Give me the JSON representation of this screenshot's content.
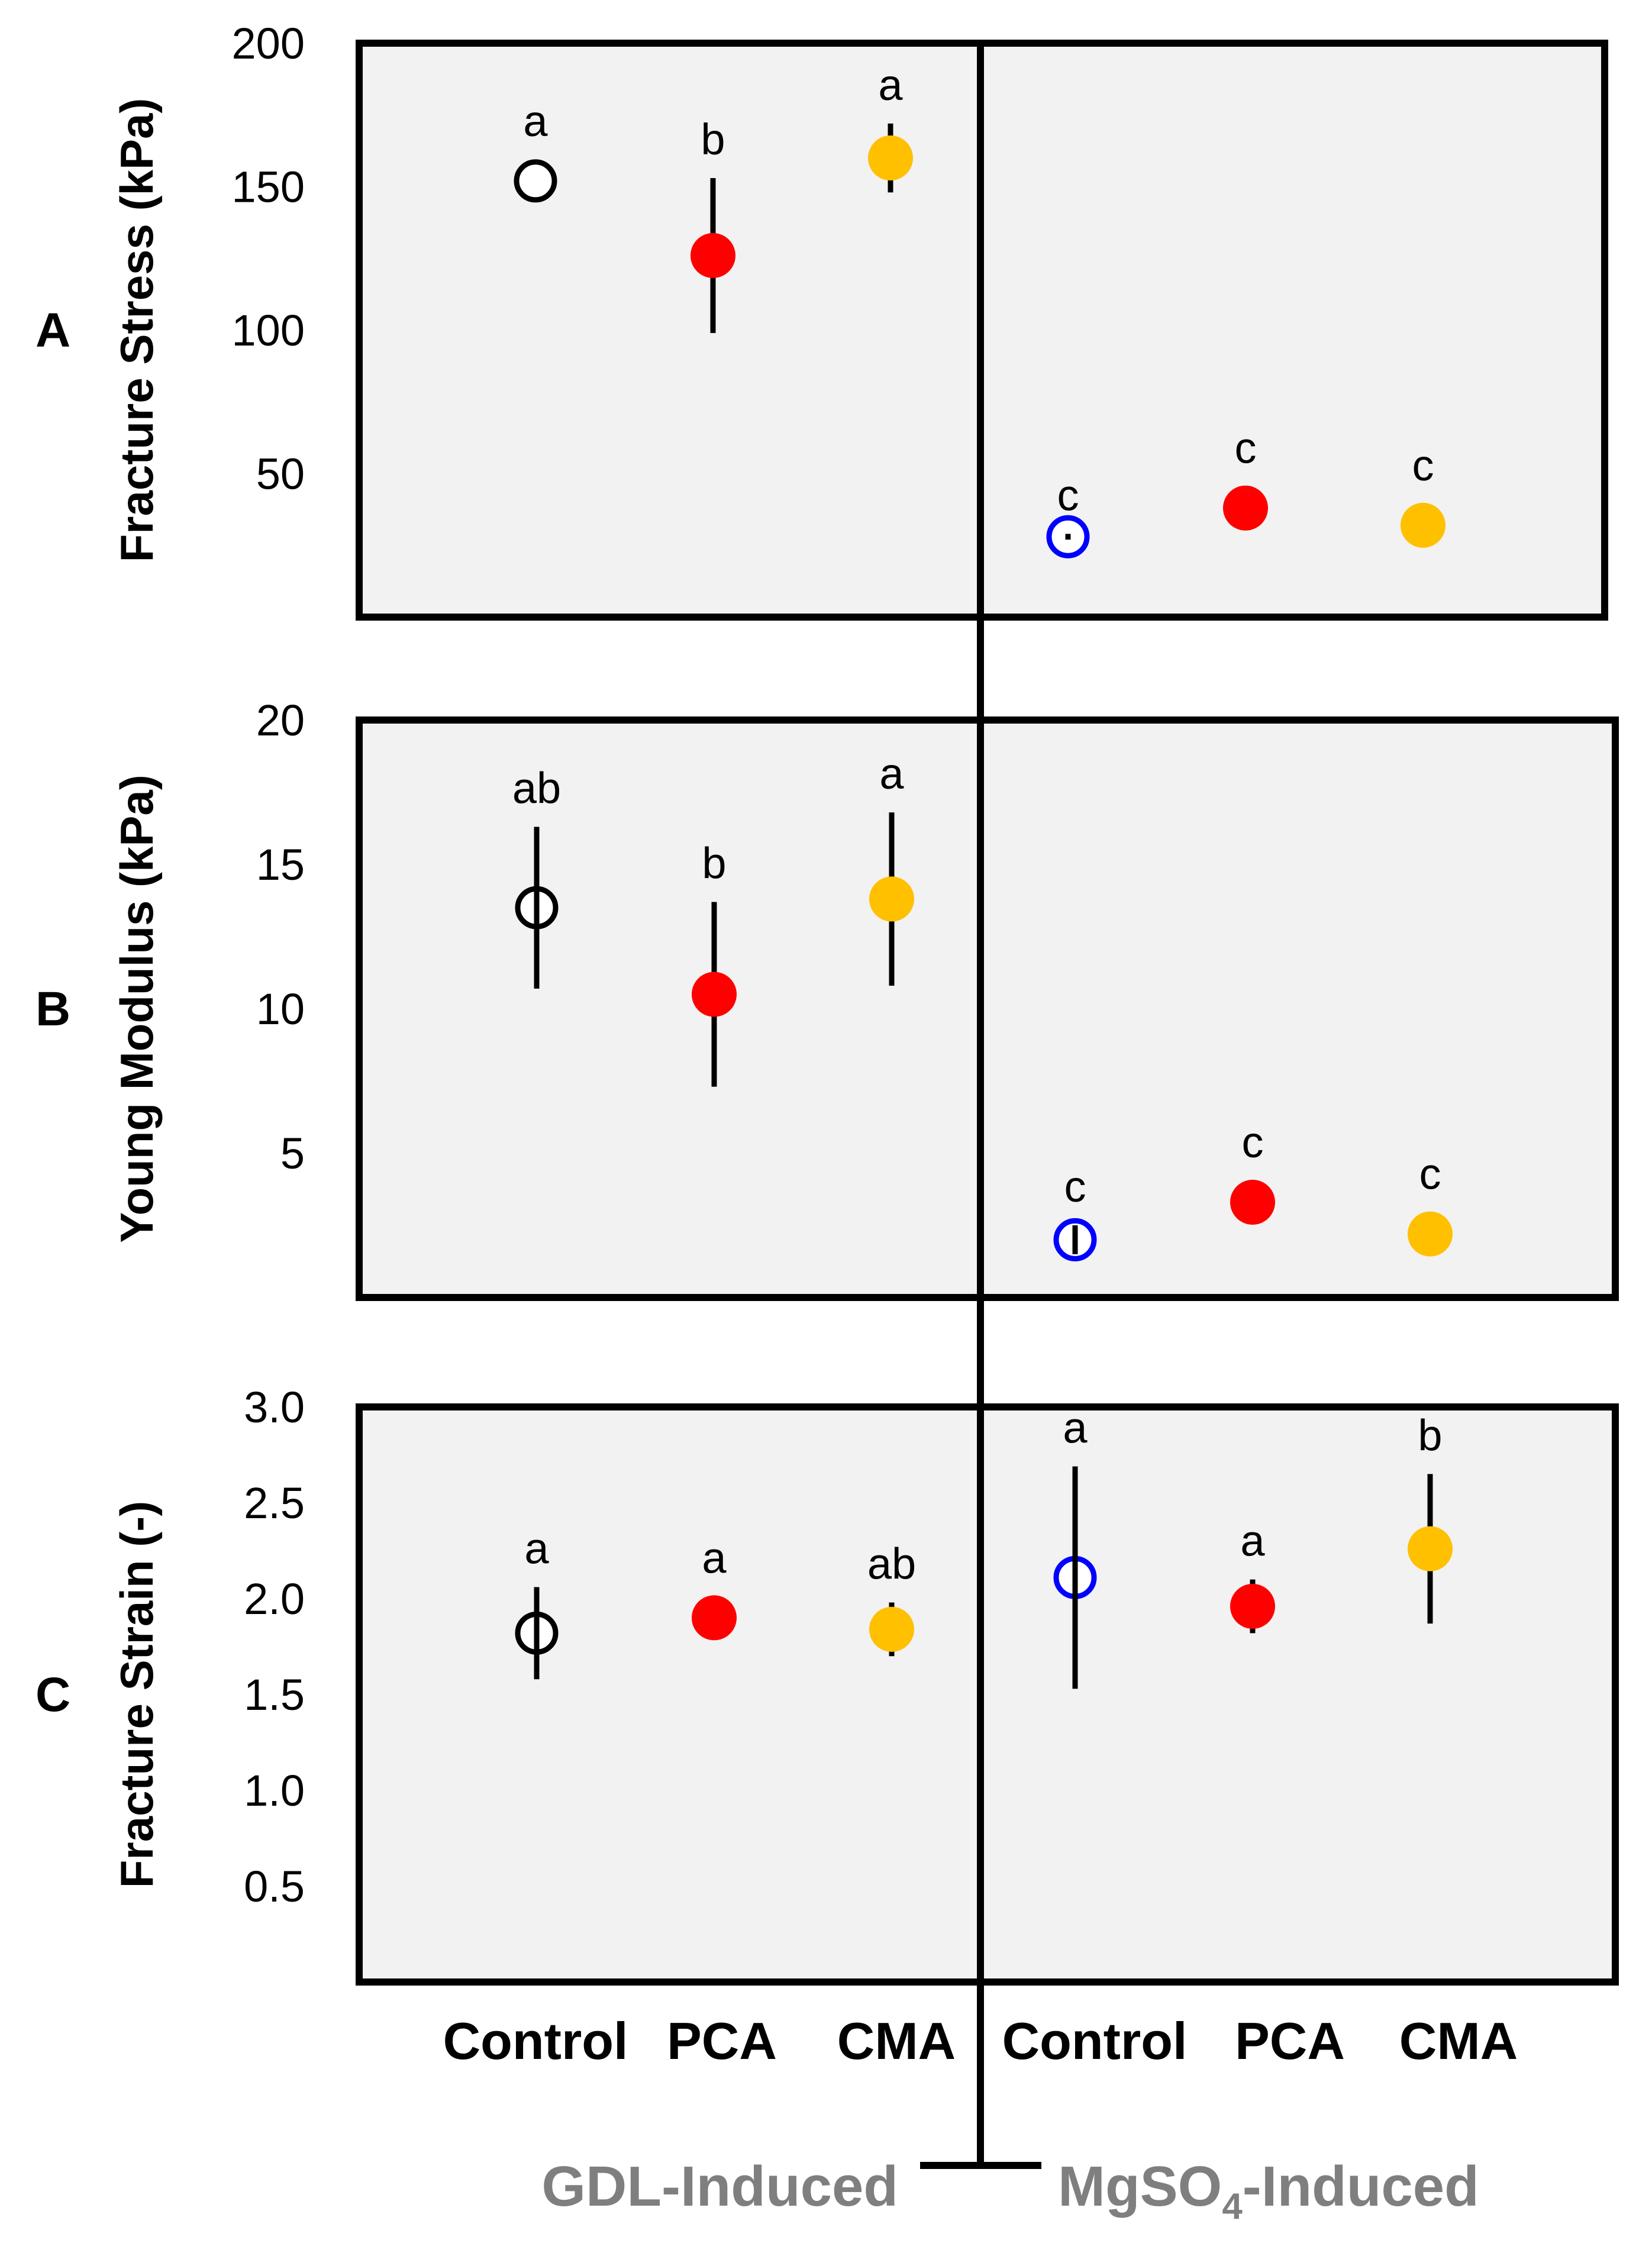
{
  "chart_data": [
    {
      "type": "scatter",
      "panel": "A",
      "ylabel": "Fracture Stress (kPa)",
      "ylim": [
        0,
        200
      ],
      "yticks": [
        "50",
        "100",
        "150",
        "200"
      ],
      "points": [
        {
          "group": "GDL-Induced",
          "category": "Control",
          "value": 152,
          "error": 0,
          "letter": "a",
          "marker": "open",
          "color": "#000000"
        },
        {
          "group": "GDL-Induced",
          "category": "PCA",
          "value": 126,
          "error": 27,
          "letter": "b",
          "marker": "filled",
          "color": "#ff0000"
        },
        {
          "group": "GDL-Induced",
          "category": "CMA",
          "value": 160,
          "error": 12,
          "letter": "a",
          "marker": "filled",
          "color": "#ffc000"
        },
        {
          "group": "MgSO4-Induced",
          "category": "Control",
          "value": 28,
          "error": 1,
          "letter": "c",
          "marker": "open",
          "color": "#0000ff"
        },
        {
          "group": "MgSO4-Induced",
          "category": "PCA",
          "value": 38,
          "error": 0,
          "letter": "c",
          "marker": "filled",
          "color": "#ff0000"
        },
        {
          "group": "MgSO4-Induced",
          "category": "CMA",
          "value": 32,
          "error": 0,
          "letter": "c",
          "marker": "filled",
          "color": "#ffc000"
        }
      ]
    },
    {
      "type": "scatter",
      "panel": "B",
      "ylabel": "Young Modulus (kPa)",
      "ylim": [
        0,
        20
      ],
      "yticks": [
        "5",
        "10",
        "15",
        "20"
      ],
      "points": [
        {
          "group": "GDL-Induced",
          "category": "Control",
          "value": 13.5,
          "error": 2.8,
          "letter": "ab",
          "marker": "open",
          "color": "#000000"
        },
        {
          "group": "GDL-Induced",
          "category": "PCA",
          "value": 10.5,
          "error": 3.2,
          "letter": "b",
          "marker": "filled",
          "color": "#ff0000"
        },
        {
          "group": "GDL-Induced",
          "category": "CMA",
          "value": 13.8,
          "error": 3.0,
          "letter": "a",
          "marker": "filled",
          "color": "#ffc000"
        },
        {
          "group": "MgSO4-Induced",
          "category": "Control",
          "value": 2.0,
          "error": 0.5,
          "letter": "c",
          "marker": "open",
          "color": "#0000ff"
        },
        {
          "group": "MgSO4-Induced",
          "category": "PCA",
          "value": 3.3,
          "error": 0,
          "letter": "c",
          "marker": "filled",
          "color": "#ff0000"
        },
        {
          "group": "MgSO4-Induced",
          "category": "CMA",
          "value": 2.2,
          "error": 0,
          "letter": "c",
          "marker": "filled",
          "color": "#ffc000"
        }
      ]
    },
    {
      "type": "scatter",
      "panel": "C",
      "ylabel": "Fracture Strain (-)",
      "ylim": [
        0,
        3.0
      ],
      "yticks": [
        "0.5",
        "1.0",
        "1.5",
        "2.0",
        "2.5",
        "3.0"
      ],
      "points": [
        {
          "group": "GDL-Induced",
          "category": "Control",
          "value": 1.82,
          "error": 0.24,
          "letter": "a",
          "marker": "open",
          "color": "#000000"
        },
        {
          "group": "GDL-Induced",
          "category": "PCA",
          "value": 1.9,
          "error": 0,
          "letter": "a",
          "marker": "filled",
          "color": "#ff0000"
        },
        {
          "group": "GDL-Induced",
          "category": "CMA",
          "value": 1.84,
          "error": 0.14,
          "letter": "ab",
          "marker": "filled",
          "color": "#ffc000"
        },
        {
          "group": "MgSO4-Induced",
          "category": "Control",
          "value": 2.11,
          "error": 0.58,
          "letter": "a",
          "marker": "open",
          "color": "#0000ff"
        },
        {
          "group": "MgSO4-Induced",
          "category": "PCA",
          "value": 1.96,
          "error": 0.14,
          "letter": "a",
          "marker": "filled",
          "color": "#ff0000"
        },
        {
          "group": "MgSO4-Induced",
          "category": "CMA",
          "value": 2.26,
          "error": 0.39,
          "letter": "b",
          "marker": "filled",
          "color": "#ffc000"
        }
      ]
    }
  ],
  "categories": [
    "Control",
    "PCA",
    "CMA",
    "Control",
    "PCA",
    "CMA"
  ],
  "groups": {
    "gdl": "GDL-Induced",
    "mg_prefix": "MgSO",
    "mg_subscript": "4",
    "mg_suffix": "-Induced"
  },
  "colors": {
    "panel_bg": "#f2f2f2",
    "frame": "#000000",
    "group_label": "#7f7f7f"
  }
}
